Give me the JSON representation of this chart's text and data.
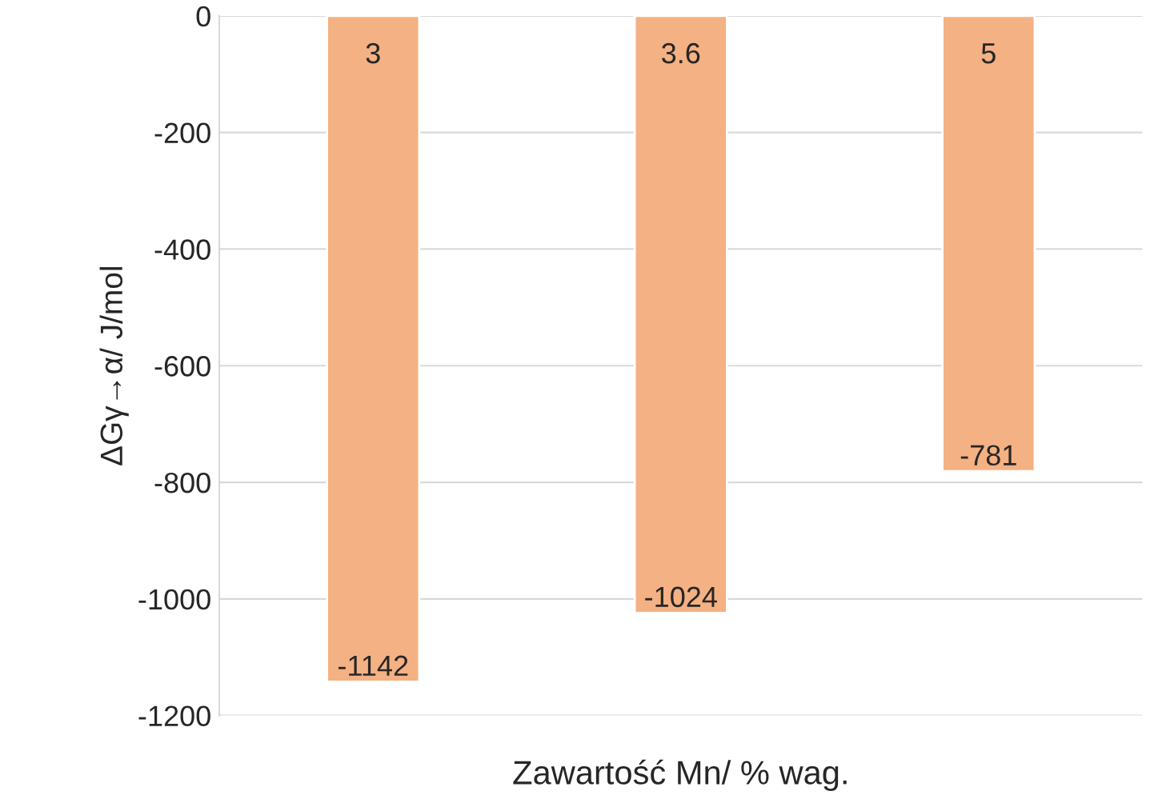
{
  "chart_data": {
    "type": "bar",
    "xlabel": "Zawartość Mn/ % wag.",
    "ylabel": "ΔGγ→α/ J/mol",
    "categories": [
      "3",
      "3.6",
      "5"
    ],
    "values": [
      -1142,
      -1024,
      -781
    ],
    "color": "#f4b183",
    "ylim": [
      -1200,
      0
    ],
    "yticks": [
      -1200,
      -1000,
      -800,
      -600,
      -400,
      -200,
      0
    ],
    "grid": "y",
    "data_labels": true
  }
}
